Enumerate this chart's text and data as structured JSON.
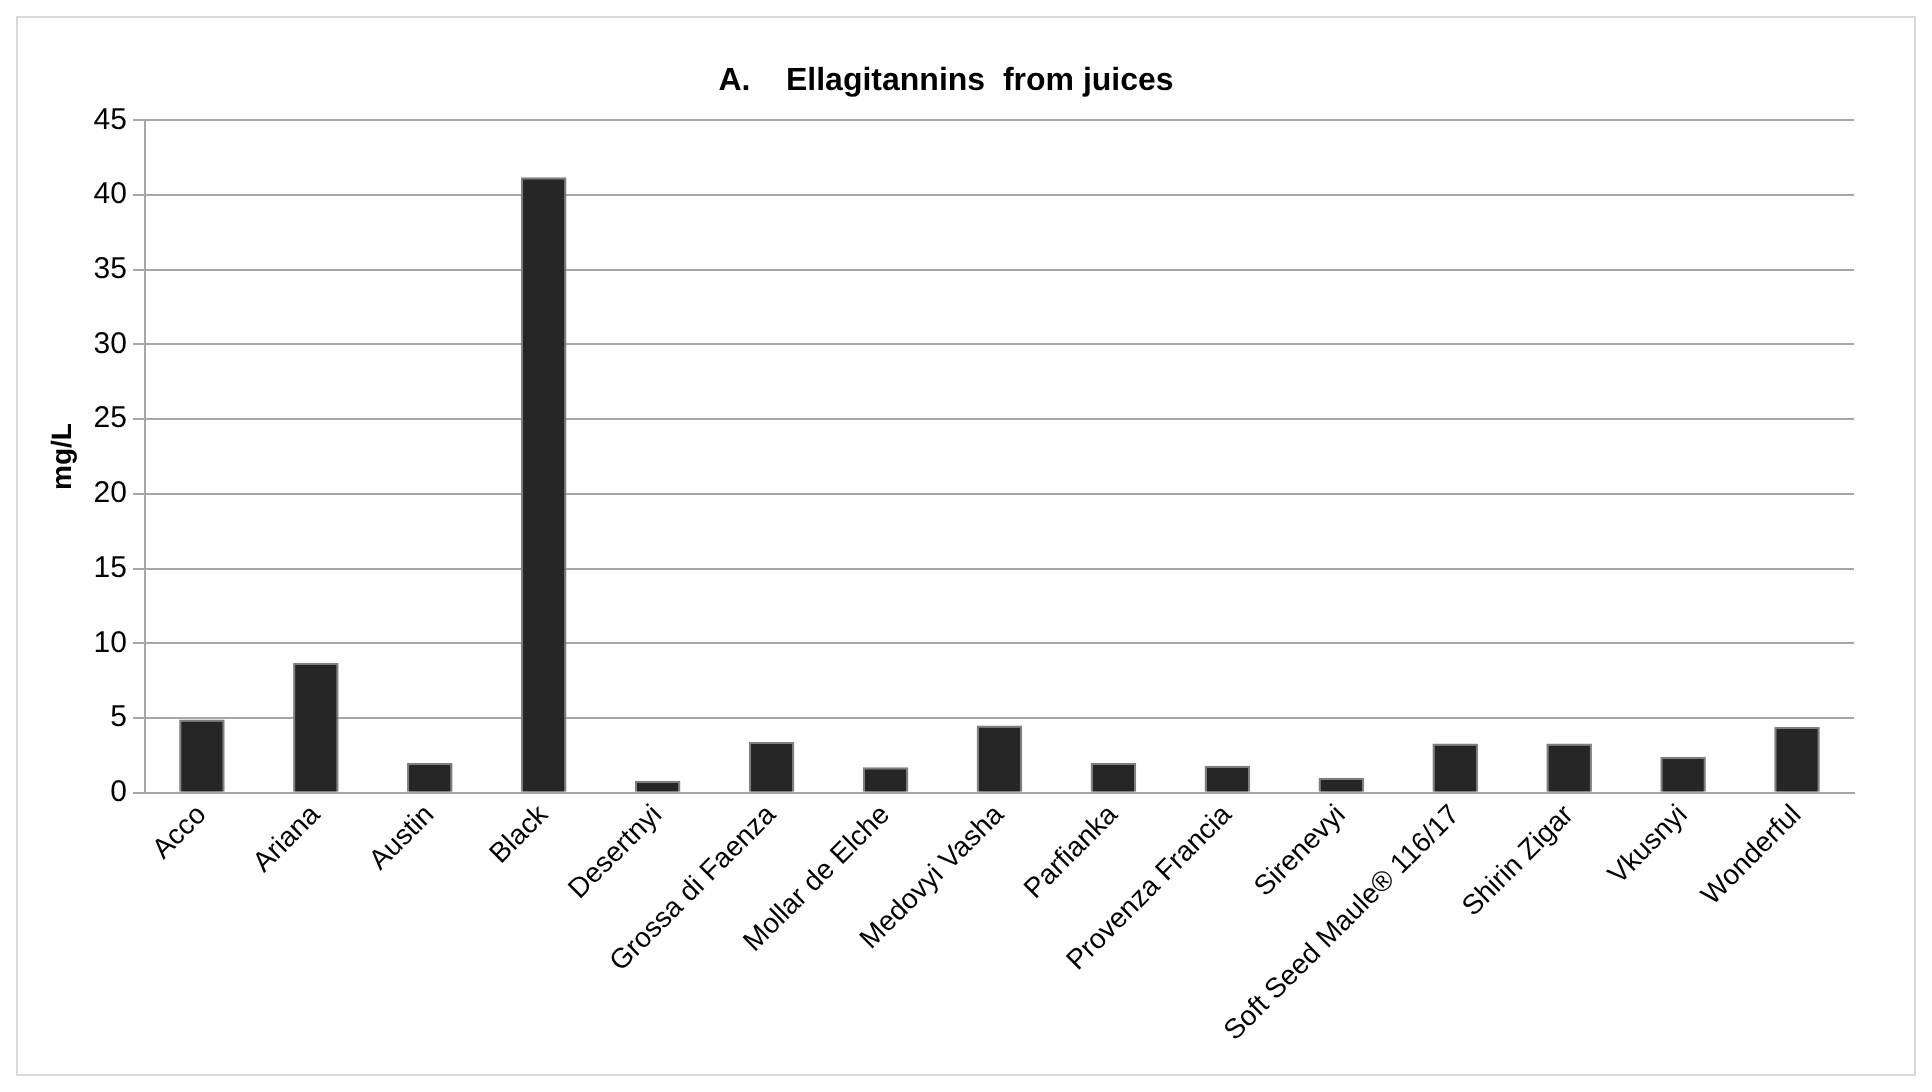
{
  "chart_data": {
    "type": "bar",
    "title": "A.    Ellagitannins  from juices",
    "ylabel": "mg/L",
    "categories": [
      "Acco",
      "Ariana",
      "Austin",
      "Black",
      "Desertnyi",
      "Grossa di Faenza",
      "Mollar de Elche",
      "Medovyi Vasha",
      "Parfianka",
      "Provenza Francia",
      "Sirenevyi",
      "Soft Seed Maule® 116/17",
      "Shirin Zigar",
      "Vkusnyi",
      "Wonderful"
    ],
    "values": [
      4.9,
      8.7,
      2.0,
      41.2,
      0.8,
      3.4,
      1.7,
      4.5,
      2.0,
      1.8,
      1.0,
      3.3,
      3.3,
      2.4,
      4.4
    ],
    "color": "#262626",
    "ylim": [
      0,
      45
    ],
    "yticks": [
      0,
      5,
      10,
      15,
      20,
      25,
      30,
      35,
      40,
      45
    ],
    "grid": "y",
    "legend": false
  }
}
